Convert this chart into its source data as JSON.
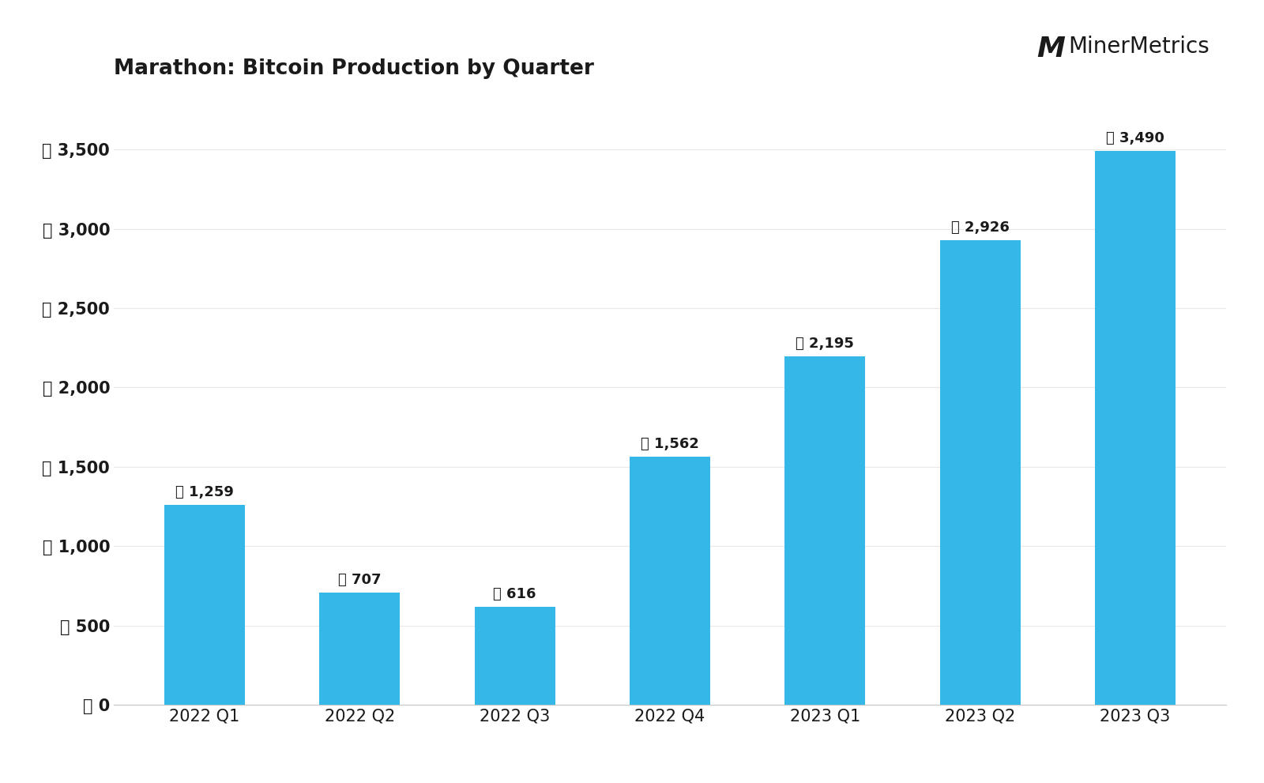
{
  "title": "Marathon: Bitcoin Production by Quarter",
  "categories": [
    "2022 Q1",
    "2022 Q2",
    "2022 Q3",
    "2022 Q4",
    "2023 Q1",
    "2023 Q2",
    "2023 Q3"
  ],
  "values": [
    1259,
    707,
    616,
    1562,
    2195,
    2926,
    3490
  ],
  "bar_color": "#35B8E8",
  "bar_label_values": [
    "1,259",
    "707",
    "616",
    "1,562",
    "2,195",
    "2,926",
    "3,490"
  ],
  "ylabel_ticks": [
    0,
    500,
    1000,
    1500,
    2000,
    2500,
    3000,
    3500
  ],
  "ytick_label_values": [
    "0",
    "500",
    "1,000",
    "1,500",
    "2,000",
    "2,500",
    "3,000",
    "3,500"
  ],
  "ylim": [
    0,
    3850
  ],
  "background_color": "#ffffff",
  "title_fontsize": 19,
  "bar_label_fontsize": 13,
  "tick_fontsize": 15,
  "watermark_fontsize": 20,
  "text_color": "#1a1a1a",
  "grid_color": "#e8e8e8",
  "bottom_spine_color": "#cccccc"
}
